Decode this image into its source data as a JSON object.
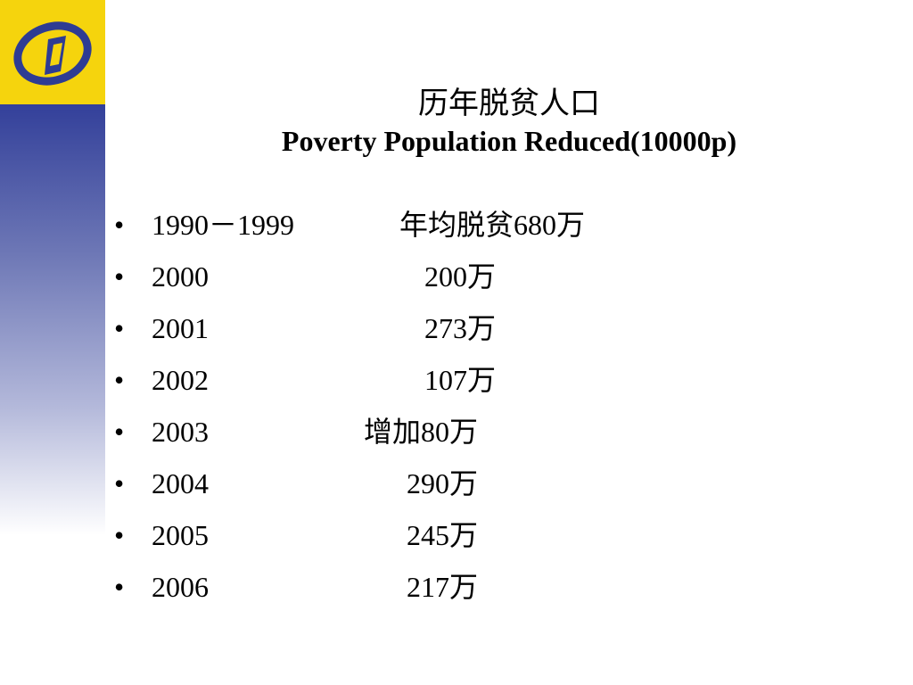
{
  "title": {
    "chinese": "历年脱贫人口",
    "english": "Poverty Population Reduced(10000p)"
  },
  "bullet_symbol": "•",
  "items": [
    {
      "year": "1990－1999",
      "value": "年均脱贫680万"
    },
    {
      "year": "2000",
      "value": "200万"
    },
    {
      "year": "2001",
      "value": "273万"
    },
    {
      "year": "2002",
      "value": "107万"
    },
    {
      "year": "2003",
      "value": "增加80万"
    },
    {
      "year": "2004",
      "value": "290万"
    },
    {
      "year": "2005",
      "value": "245万"
    },
    {
      "year": "2006",
      "value": "217万"
    }
  ],
  "colors": {
    "logo_background": "#f5d40d",
    "logo_mark": "#2e3c93",
    "sidebar_gradient_top": "#33409a"
  },
  "icons": {
    "logo": "statistics-bureau-logo-icon"
  }
}
